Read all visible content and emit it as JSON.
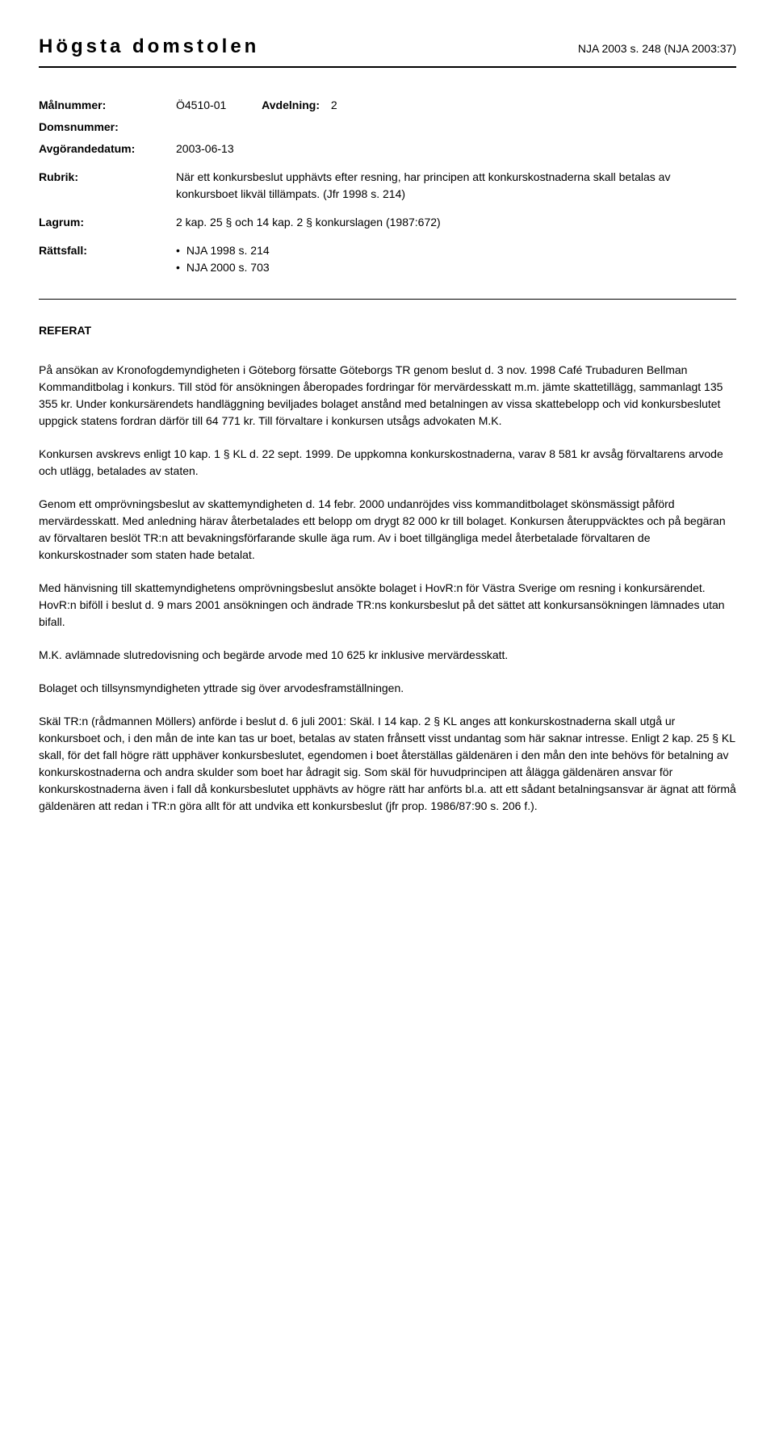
{
  "header": {
    "court_name": "Högsta domstolen",
    "case_ref": "NJA 2003 s. 248 (NJA 2003:37)"
  },
  "meta": {
    "malnummer_label": "Målnummer:",
    "malnummer_value": "Ö4510-01",
    "avdelning_label": "Avdelning:",
    "avdelning_value": "2",
    "domsnummer_label": "Domsnummer:",
    "domsnummer_value": "",
    "avgorande_label": "Avgörandedatum:",
    "avgorande_value": "2003-06-13",
    "rubrik_label": "Rubrik:",
    "rubrik_value": "När ett konkursbeslut upphävts efter resning, har principen att konkurskostnaderna skall betalas av konkursboet likväl tillämpats. (Jfr 1998 s. 214)",
    "lagrum_label": "Lagrum:",
    "lagrum_value": "2 kap. 25 § och 14 kap. 2 § konkurslagen (1987:672)",
    "rattsfall_label": "Rättsfall:",
    "rattsfall_items": [
      "NJA 1998 s. 214",
      "NJA 2000 s. 703"
    ]
  },
  "referat": {
    "heading": "REFERAT",
    "paragraphs": [
      "På ansökan av Kronofogdemyndigheten i Göteborg försatte Göteborgs TR genom beslut d. 3 nov. 1998 Café Trubaduren Bellman Kommanditbolag i konkurs. Till stöd för ansökningen åberopades fordringar för mervärdesskatt m.m. jämte skattetillägg, sammanlagt 135 355 kr. Under konkursärendets handläggning beviljades bolaget anstånd med betalningen av vissa skattebelopp och vid konkursbeslutet uppgick statens fordran därför till 64 771 kr. Till förvaltare i konkursen utsågs advokaten M.K.",
      "Konkursen avskrevs enligt 10 kap. 1 § KL d. 22 sept. 1999. De uppkomna konkurskostnaderna, varav 8 581 kr avsåg förvaltarens arvode och utlägg, betalades av staten.",
      "Genom ett omprövningsbeslut av skattemyndigheten d. 14 febr. 2000 undanröjdes viss kommanditbolaget skönsmässigt påförd mervärdesskatt. Med anledning härav återbetalades ett belopp om drygt 82 000 kr till bolaget. Konkursen återuppväcktes och på begäran av förvaltaren beslöt TR:n att bevakningsförfarande skulle äga rum. Av i boet tillgängliga medel återbetalade förvaltaren de konkurskostnader som staten hade betalat.",
      "Med hänvisning till skattemyndighetens omprövningsbeslut ansökte bolaget i HovR:n för Västra Sverige om resning i konkursärendet. HovR:n biföll i beslut d. 9 mars 2001 ansökningen och ändrade TR:ns konkursbeslut på det sättet att konkursansökningen lämnades utan bifall.",
      "M.K. avlämnade slutredovisning och begärde arvode med 10 625 kr inklusive mervärdesskatt.",
      "Bolaget och tillsynsmyndigheten yttrade sig över arvodesframställningen.",
      "Skäl TR:n (rådmannen Möllers) anförde i beslut d. 6 juli 2001: Skäl. I 14 kap. 2 § KL anges att konkurskostnaderna skall utgå ur konkursboet och, i den mån de inte kan tas ur boet, betalas av staten frånsett visst undantag som här saknar intresse. Enligt 2 kap. 25 § KL skall, för det fall högre rätt upphäver konkursbeslutet, egendomen i boet återställas gäldenären i den mån den inte behövs för betalning av konkurskostnaderna och andra skulder som boet har ådragit sig. Som skäl för huvudprincipen att ålägga gäldenären ansvar för konkurskostnaderna även i fall då konkursbeslutet upphävts av högre rätt har anförts bl.a. att ett sådant betalningsansvar är ägnat att förmå gäldenären att redan i TR:n göra allt för att undvika ett konkursbeslut (jfr prop. 1986/87:90 s. 206 f.)."
    ]
  }
}
